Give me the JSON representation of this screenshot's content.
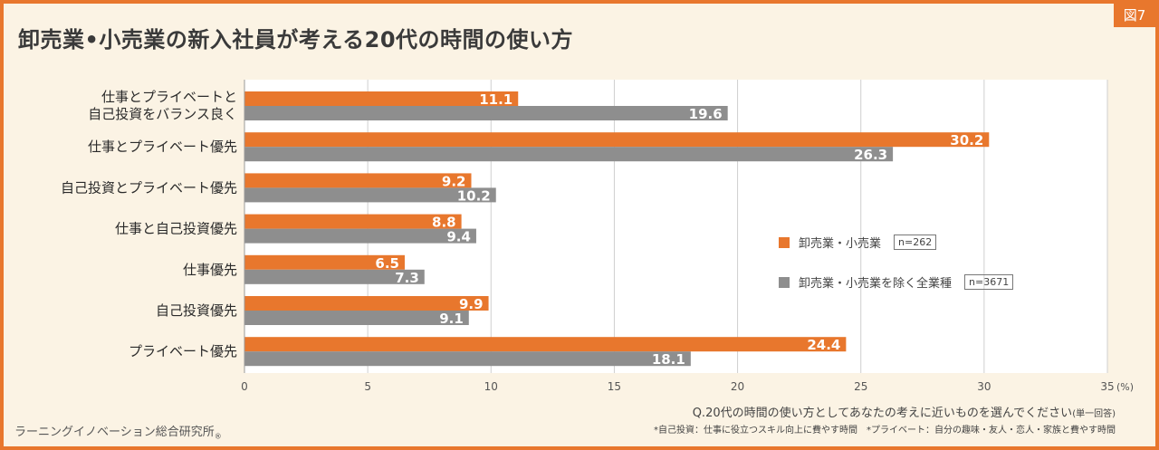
{
  "badge": "図7",
  "chart_data": {
    "type": "bar",
    "orientation": "horizontal",
    "title": "卸売業•小売業の新入社員が考える20代の時間の使い方",
    "categories": [
      [
        "仕事とプライベートと",
        "自己投資をバランス良く"
      ],
      [
        "仕事とプライベート優先"
      ],
      [
        "自己投資とプライベート優先"
      ],
      [
        "仕事と自己投資優先"
      ],
      [
        "仕事優先"
      ],
      [
        "自己投資優先"
      ],
      [
        "プライベート優先"
      ]
    ],
    "series": [
      {
        "name": "卸売業・小売業",
        "n_label": "n=262",
        "color": "#e8772d",
        "values": [
          11.1,
          30.2,
          9.2,
          8.8,
          6.5,
          9.9,
          24.4
        ]
      },
      {
        "name": "卸売業・小売業を除く全業種",
        "n_label": "n=3671",
        "color": "#8e8e8e",
        "values": [
          19.6,
          26.3,
          10.2,
          9.4,
          7.3,
          9.1,
          18.1
        ]
      }
    ],
    "xlim": [
      0,
      35
    ],
    "xticks": [
      "0",
      "5",
      "10",
      "15",
      "20",
      "25",
      "30",
      "35"
    ],
    "xunit": "(%)",
    "grid": true,
    "legend_position": "right"
  },
  "question": "Q.20代の時間の使い方としてあなたの考えに近いものを選んでください",
  "question_note": "(単一回答)",
  "footnote": "*自己投資：仕事に役立つスキル向上に費やす時間　*プライベート：自分の趣味・友人・恋人・家族と費やす時間",
  "source": "ラーニングイノベーション総合研究所",
  "source_mark": "®"
}
